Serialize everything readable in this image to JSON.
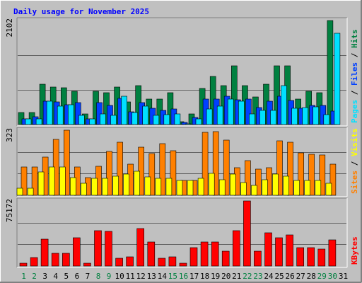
{
  "chart_data": {
    "type": "bar",
    "title": "Daily usage for November 2025",
    "categories": [
      "1",
      "2",
      "3",
      "4",
      "5",
      "6",
      "7",
      "8",
      "9",
      "10",
      "11",
      "12",
      "13",
      "14",
      "15",
      "16",
      "17",
      "18",
      "19",
      "20",
      "21",
      "22",
      "23",
      "24",
      "25",
      "26",
      "27",
      "28",
      "29",
      "30",
      "31"
    ],
    "weekend_days": [
      "1",
      "2",
      "8",
      "9",
      "15",
      "16",
      "22",
      "23",
      "29",
      "30"
    ],
    "colors": {
      "background": "#c0c0c0",
      "hits": "#008040",
      "files": "#0040ff",
      "pages": "#00e0ff",
      "visits": "#ffff00",
      "sites": "#ff8000",
      "kbytes": "#ff0000",
      "title_text": "#0000ff",
      "weekday_label": "#000000",
      "weekend_label": "#008040"
    },
    "panels": [
      {
        "id": "hits-panel",
        "ymax_label": "2102",
        "ymax": 2102,
        "side_label": [
          {
            "text": "Pages",
            "color": "#00e0ff"
          },
          {
            "text": " / ",
            "color": "#000000"
          },
          {
            "text": "Files",
            "color": "#0040ff"
          },
          {
            "text": " / ",
            "color": "#000000"
          },
          {
            "text": "Hits",
            "color": "#008040"
          }
        ],
        "series": [
          {
            "name": "Hits",
            "color": "#008040",
            "values": [
              250,
              250,
              820,
              760,
              750,
              670,
              210,
              670,
              650,
              760,
              460,
              790,
              520,
              520,
              650,
              60,
              210,
              730,
              970,
              780,
              1190,
              790,
              560,
              820,
              1190,
              1190,
              520,
              670,
              650,
              2102
            ]
          },
          {
            "name": "Files",
            "color": "#0040ff",
            "values": [
              110,
              160,
              470,
              460,
              400,
              440,
              110,
              440,
              390,
              530,
              260,
              440,
              330,
              290,
              310,
              40,
              140,
              510,
              510,
              570,
              500,
              510,
              350,
              470,
              570,
              490,
              330,
              390,
              380,
              270
            ]
          },
          {
            "name": "Pages",
            "color": "#00e0ff",
            "values": [
              110,
              120,
              470,
              370,
              400,
              190,
              110,
              220,
              190,
              570,
              240,
              370,
              190,
              200,
              220,
              20,
              110,
              310,
              370,
              510,
              470,
              220,
              280,
              280,
              790,
              330,
              340,
              360,
              200,
              1850
            ]
          }
        ]
      },
      {
        "id": "sites-panel",
        "ymax_label": "323",
        "ymax": 323,
        "side_label": [
          {
            "text": "Sites",
            "color": "#ff8000"
          },
          {
            "text": " / ",
            "color": "#000000"
          },
          {
            "text": "Visits",
            "color": "#ffff00"
          }
        ],
        "series": [
          {
            "name": "Sites",
            "color": "#ff8000",
            "values": [
              140,
              140,
              190,
              278,
              323,
              140,
              88,
              145,
              218,
              263,
              155,
              238,
              208,
              258,
              220,
              73,
              73,
              313,
              316,
              273,
              138,
              173,
              131,
              138,
              270,
              263,
              210,
              204,
              201,
              155
            ]
          },
          {
            "name": "Visits",
            "color": "#ffff00",
            "values": [
              35,
              35,
              115,
              140,
              140,
              88,
              58,
              85,
              85,
              95,
              105,
              120,
              93,
              85,
              85,
              73,
              73,
              83,
              108,
              78,
              105,
              63,
              50,
              78,
              105,
              95,
              75,
              75,
              75,
              58
            ]
          }
        ]
      },
      {
        "id": "kbytes-panel",
        "ymax_label": "75172",
        "ymax": 75172,
        "side_label": [
          {
            "text": "KBytes",
            "color": "#ff0000"
          }
        ],
        "series": [
          {
            "name": "KBytes",
            "color": "#ff0000",
            "values": [
              3000,
              10000,
              31000,
              15000,
              15000,
              33000,
              3000,
              41000,
              40000,
              9000,
              11000,
              43000,
              28000,
              9000,
              11000,
              3000,
              21000,
              28000,
              28000,
              17000,
              41000,
              75172,
              17000,
              38000,
              33000,
              36000,
              21000,
              21000,
              20000,
              30000
            ]
          }
        ]
      }
    ]
  }
}
